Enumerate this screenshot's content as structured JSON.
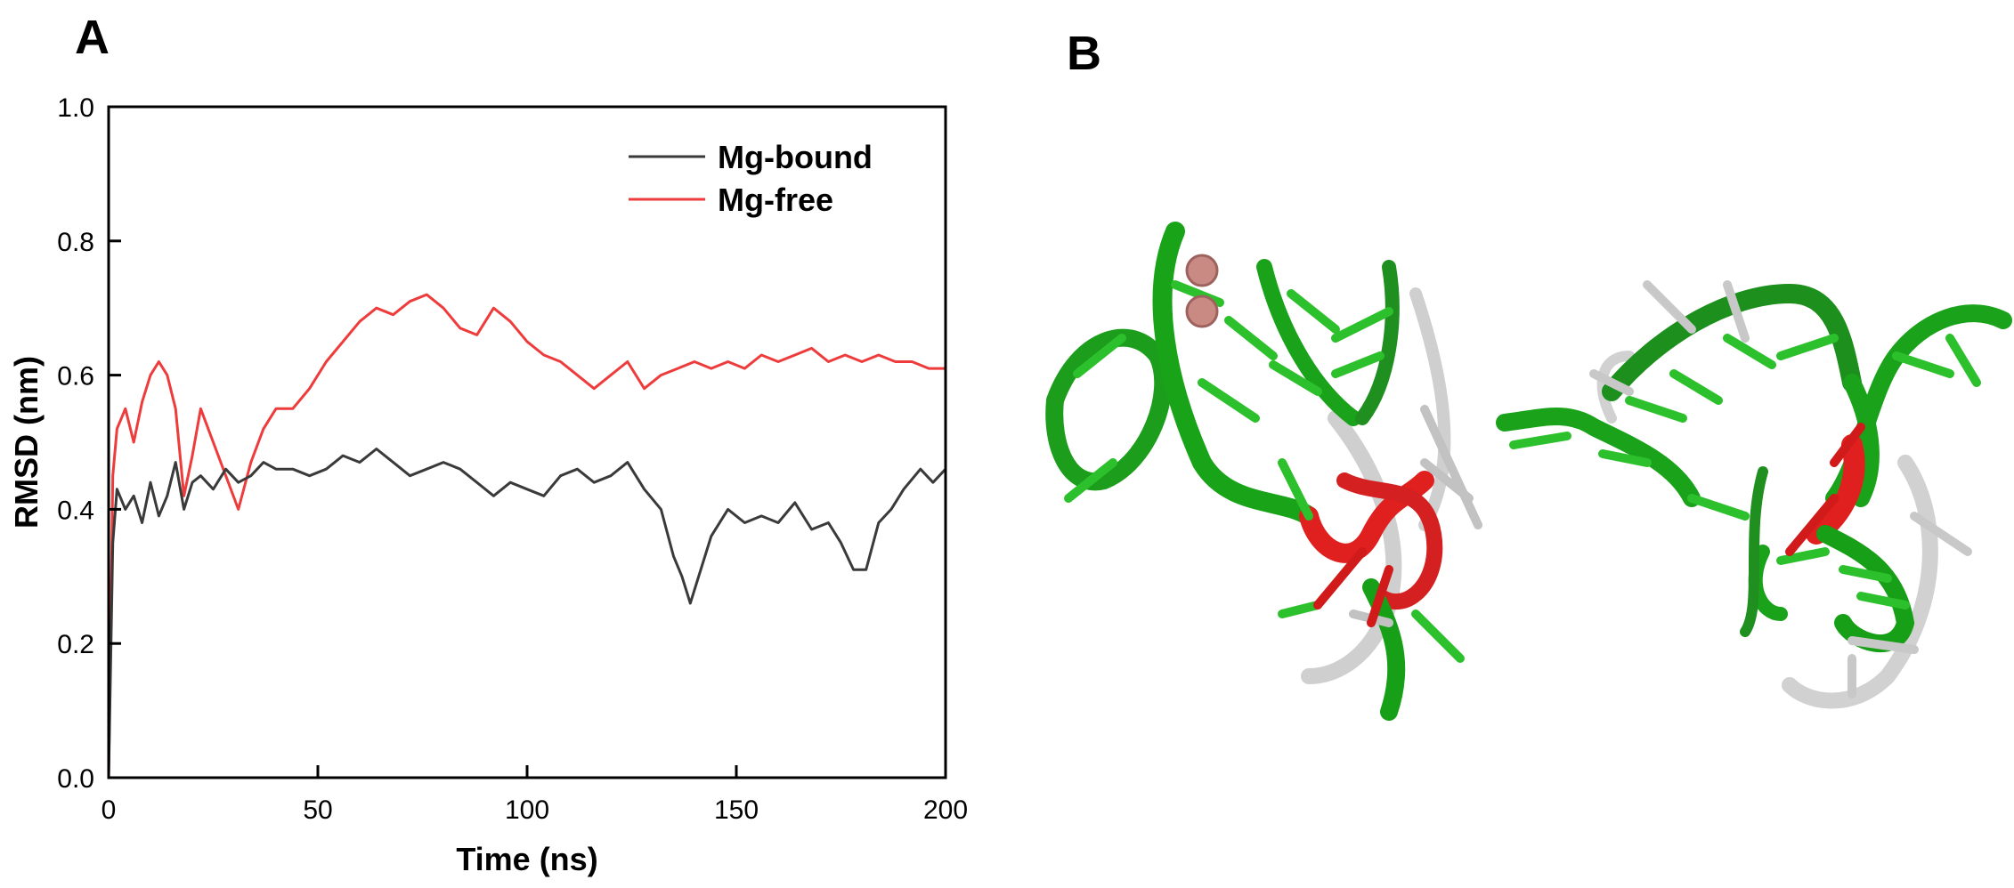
{
  "panels": {
    "a_label": "A",
    "b_label": "B"
  },
  "chart_data": {
    "type": "line",
    "title": "",
    "xlabel": "Time (ns)",
    "ylabel": "RMSD (nm)",
    "xlim": [
      0,
      200
    ],
    "ylim": [
      0,
      1.0
    ],
    "xticks": [
      0,
      50,
      100,
      150,
      200
    ],
    "xtick_labels": [
      "0",
      "50",
      "100",
      "150",
      "200"
    ],
    "yticks": [
      0,
      0.2,
      0.4,
      0.6,
      0.8,
      1.0
    ],
    "ytick_labels": [
      "0.0",
      "0.2",
      "0.4",
      "0.6",
      "0.8",
      "1.0"
    ],
    "grid": false,
    "legend_position": "top-right",
    "series": [
      {
        "name": "Mg-bound",
        "color": "#3a3a3a",
        "x": [
          0,
          1,
          2,
          4,
          6,
          8,
          10,
          12,
          14,
          16,
          18,
          20,
          22,
          25,
          28,
          31,
          34,
          37,
          40,
          44,
          48,
          52,
          56,
          60,
          64,
          68,
          72,
          76,
          80,
          84,
          88,
          92,
          96,
          100,
          104,
          108,
          112,
          116,
          120,
          124,
          128,
          132,
          135,
          137,
          139,
          141,
          144,
          148,
          152,
          156,
          160,
          164,
          168,
          172,
          175,
          178,
          181,
          184,
          187,
          190,
          194,
          197,
          200
        ],
        "y": [
          0.0,
          0.35,
          0.43,
          0.4,
          0.42,
          0.38,
          0.44,
          0.39,
          0.42,
          0.47,
          0.4,
          0.44,
          0.45,
          0.43,
          0.46,
          0.44,
          0.45,
          0.47,
          0.46,
          0.46,
          0.45,
          0.46,
          0.48,
          0.47,
          0.49,
          0.47,
          0.45,
          0.46,
          0.47,
          0.46,
          0.44,
          0.42,
          0.44,
          0.43,
          0.42,
          0.45,
          0.46,
          0.44,
          0.45,
          0.47,
          0.43,
          0.4,
          0.33,
          0.3,
          0.26,
          0.3,
          0.36,
          0.4,
          0.38,
          0.39,
          0.38,
          0.41,
          0.37,
          0.38,
          0.35,
          0.31,
          0.31,
          0.38,
          0.4,
          0.43,
          0.46,
          0.44,
          0.46
        ]
      },
      {
        "name": "Mg-free",
        "color": "#ee3b3b",
        "x": [
          0,
          1,
          2,
          4,
          6,
          8,
          10,
          12,
          14,
          16,
          18,
          20,
          22,
          25,
          28,
          31,
          34,
          37,
          40,
          44,
          48,
          52,
          56,
          60,
          64,
          68,
          72,
          76,
          80,
          84,
          88,
          92,
          96,
          100,
          104,
          108,
          112,
          116,
          120,
          124,
          128,
          132,
          136,
          140,
          144,
          148,
          152,
          156,
          160,
          164,
          168,
          172,
          176,
          180,
          184,
          188,
          192,
          196,
          200
        ],
        "y": [
          0.0,
          0.45,
          0.52,
          0.55,
          0.5,
          0.56,
          0.6,
          0.62,
          0.6,
          0.55,
          0.42,
          0.48,
          0.55,
          0.5,
          0.45,
          0.4,
          0.47,
          0.52,
          0.55,
          0.55,
          0.58,
          0.62,
          0.65,
          0.68,
          0.7,
          0.69,
          0.71,
          0.72,
          0.7,
          0.67,
          0.66,
          0.7,
          0.68,
          0.65,
          0.63,
          0.62,
          0.6,
          0.58,
          0.6,
          0.62,
          0.58,
          0.6,
          0.61,
          0.62,
          0.61,
          0.62,
          0.61,
          0.63,
          0.62,
          0.63,
          0.64,
          0.62,
          0.63,
          0.62,
          0.63,
          0.62,
          0.62,
          0.61,
          0.61
        ]
      }
    ]
  }
}
